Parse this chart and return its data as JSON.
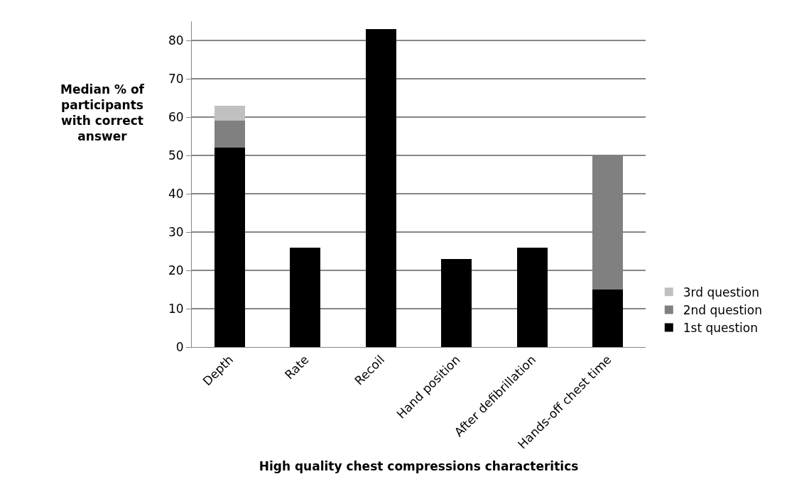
{
  "chart_data": {
    "type": "bar",
    "stacked": true,
    "xlabel": "High quality chest compressions characteritics",
    "ylabel": "Median % of participants with correct answer",
    "categories": [
      "Depth",
      "Rate",
      "Recoil",
      "Hand position",
      "After defibrillation",
      "Hands-off chest time"
    ],
    "series": [
      {
        "name": "1st question",
        "color": "#000000",
        "values": [
          52,
          26,
          83,
          23,
          26,
          15
        ]
      },
      {
        "name": "2nd question",
        "color": "#808080",
        "values": [
          7,
          null,
          null,
          null,
          null,
          35
        ]
      },
      {
        "name": "3rd question",
        "color": "#c0c0c0",
        "values": [
          4,
          null,
          null,
          null,
          null,
          null
        ]
      }
    ],
    "ylim": [
      0,
      85
    ],
    "yticks": [
      0,
      10,
      20,
      30,
      40,
      50,
      60,
      70,
      80
    ],
    "grid": "y",
    "legend": "right"
  }
}
